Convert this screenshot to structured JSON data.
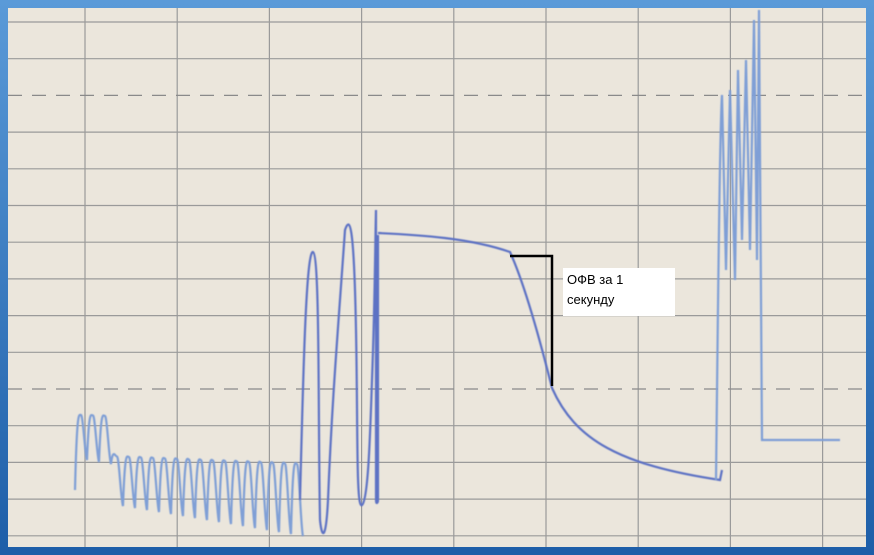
{
  "annotation": {
    "lines": [
      "ОФВ за 1",
      "секунду"
    ]
  }
}
